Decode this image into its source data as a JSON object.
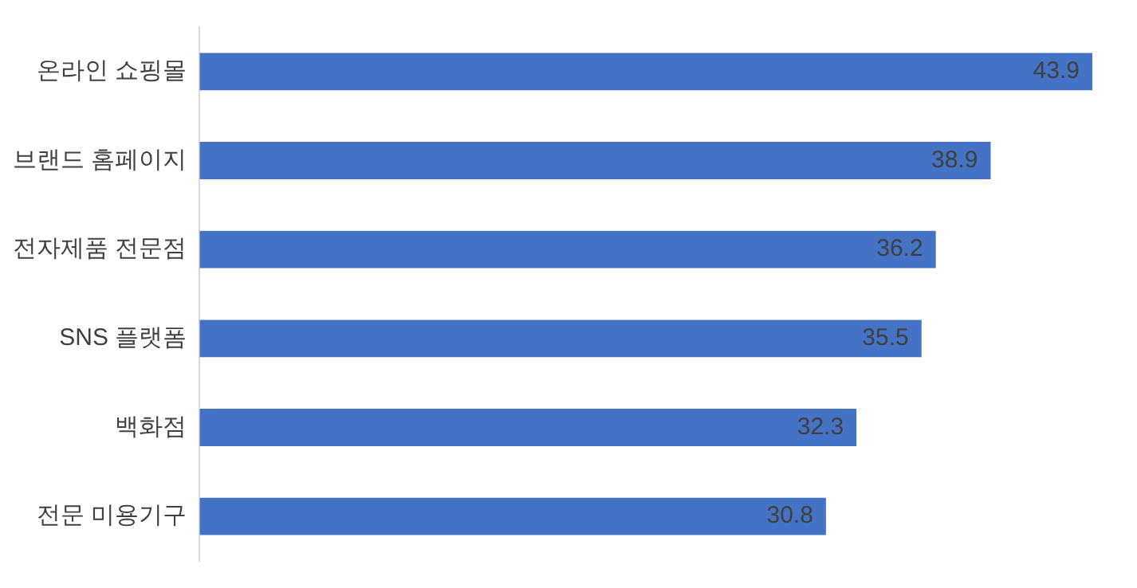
{
  "chart_data": {
    "type": "bar",
    "orientation": "horizontal",
    "categories": [
      "온라인 쇼핑몰",
      "브랜드 홈페이지",
      "전자제품 전문점",
      "SNS 플랫폼",
      "백화점",
      "전문 미용기구"
    ],
    "values": [
      43.9,
      38.9,
      36.2,
      35.5,
      32.3,
      30.8
    ],
    "color": "#4472c4",
    "data_labels": true,
    "grid": false,
    "legend": false,
    "tick_labels": "y"
  }
}
